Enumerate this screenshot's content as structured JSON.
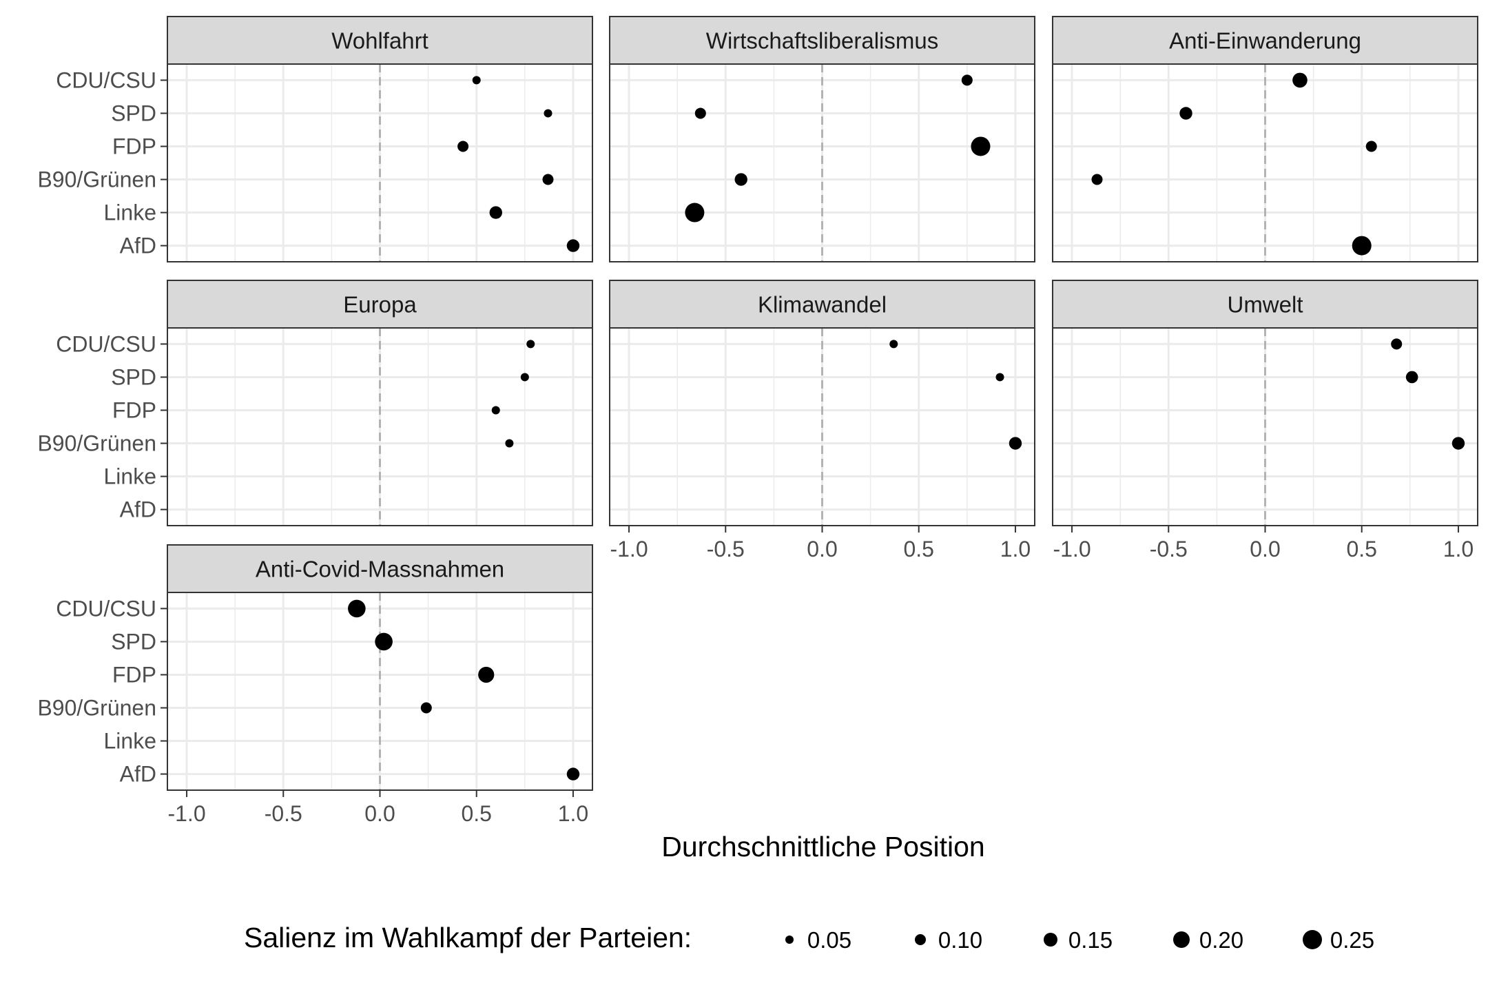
{
  "chart_data": {
    "type": "scatter",
    "xlabel": "Durchschnittliche Position",
    "xlim": [
      -1.1,
      1.1
    ],
    "x_ticks": [
      -1.0,
      -0.5,
      0.0,
      0.5,
      1.0
    ],
    "x_tick_labels": [
      "-1.0",
      "-0.5",
      "0.0",
      "0.5",
      "1.0"
    ],
    "reference_line_x": 0.0,
    "grid": true,
    "categories": [
      "CDU/CSU",
      "SPD",
      "FDP",
      "B90/Grünen",
      "Linke",
      "AfD"
    ],
    "size_legend": {
      "title": "Salienz im Wahlkampf der Parteien:",
      "placement": "bottom",
      "values": [
        0.05,
        0.1,
        0.15,
        0.2,
        0.25
      ],
      "labels": [
        "0.05",
        "0.10",
        "0.15",
        "0.20",
        "0.25"
      ]
    },
    "panels": [
      {
        "title": "Wohlfahrt",
        "points": [
          {
            "party": "CDU/CSU",
            "x": 0.5,
            "salience": 0.05
          },
          {
            "party": "SPD",
            "x": 0.87,
            "salience": 0.05
          },
          {
            "party": "FDP",
            "x": 0.43,
            "salience": 0.1
          },
          {
            "party": "B90/Grünen",
            "x": 0.87,
            "salience": 0.1
          },
          {
            "party": "Linke",
            "x": 0.6,
            "salience": 0.13
          },
          {
            "party": "AfD",
            "x": 1.0,
            "salience": 0.13
          }
        ]
      },
      {
        "title": "Wirtschaftsliberalismus",
        "points": [
          {
            "party": "CDU/CSU",
            "x": 0.75,
            "salience": 0.1
          },
          {
            "party": "SPD",
            "x": -0.63,
            "salience": 0.1
          },
          {
            "party": "FDP",
            "x": 0.82,
            "salience": 0.25
          },
          {
            "party": "B90/Grünen",
            "x": -0.42,
            "salience": 0.13
          },
          {
            "party": "Linke",
            "x": -0.66,
            "salience": 0.25
          },
          {
            "party": "AfD",
            "x": null,
            "salience": null
          }
        ]
      },
      {
        "title": "Anti-Einwanderung",
        "points": [
          {
            "party": "CDU/CSU",
            "x": 0.18,
            "salience": 0.17
          },
          {
            "party": "SPD",
            "x": -0.41,
            "salience": 0.13
          },
          {
            "party": "FDP",
            "x": 0.55,
            "salience": 0.1
          },
          {
            "party": "B90/Grünen",
            "x": -0.87,
            "salience": 0.1
          },
          {
            "party": "Linke",
            "x": null,
            "salience": null
          },
          {
            "party": "AfD",
            "x": 0.5,
            "salience": 0.25
          }
        ]
      },
      {
        "title": "Europa",
        "points": [
          {
            "party": "CDU/CSU",
            "x": 0.78,
            "salience": 0.05
          },
          {
            "party": "SPD",
            "x": 0.75,
            "salience": 0.05
          },
          {
            "party": "FDP",
            "x": 0.6,
            "salience": 0.05
          },
          {
            "party": "B90/Grünen",
            "x": 0.67,
            "salience": 0.05
          },
          {
            "party": "Linke",
            "x": null,
            "salience": null
          },
          {
            "party": "AfD",
            "x": null,
            "salience": null
          }
        ]
      },
      {
        "title": "Klimawandel",
        "points": [
          {
            "party": "CDU/CSU",
            "x": 0.37,
            "salience": 0.05
          },
          {
            "party": "SPD",
            "x": 0.92,
            "salience": 0.05
          },
          {
            "party": "FDP",
            "x": null,
            "salience": null
          },
          {
            "party": "B90/Grünen",
            "x": 1.0,
            "salience": 0.13
          },
          {
            "party": "Linke",
            "x": null,
            "salience": null
          },
          {
            "party": "AfD",
            "x": null,
            "salience": null
          }
        ]
      },
      {
        "title": "Umwelt",
        "points": [
          {
            "party": "CDU/CSU",
            "x": 0.68,
            "salience": 0.1
          },
          {
            "party": "SPD",
            "x": 0.76,
            "salience": 0.12
          },
          {
            "party": "FDP",
            "x": null,
            "salience": null
          },
          {
            "party": "B90/Grünen",
            "x": 1.0,
            "salience": 0.13
          },
          {
            "party": "Linke",
            "x": null,
            "salience": null
          },
          {
            "party": "AfD",
            "x": null,
            "salience": null
          }
        ]
      },
      {
        "title": "Anti-Covid-Massnahmen",
        "points": [
          {
            "party": "CDU/CSU",
            "x": -0.12,
            "salience": 0.22
          },
          {
            "party": "SPD",
            "x": 0.02,
            "salience": 0.22
          },
          {
            "party": "FDP",
            "x": 0.55,
            "salience": 0.19
          },
          {
            "party": "B90/Grünen",
            "x": 0.24,
            "salience": 0.1
          },
          {
            "party": "Linke",
            "x": null,
            "salience": null
          },
          {
            "party": "AfD",
            "x": 1.0,
            "salience": 0.13
          }
        ]
      }
    ],
    "colors": {
      "point": "#000000",
      "strip_fill": "#d9d9d9",
      "panel_border": "#333333",
      "grid": "#ebebeb",
      "reference_line": "#b3b3b3",
      "tick_text": "#4d4d4d"
    }
  }
}
